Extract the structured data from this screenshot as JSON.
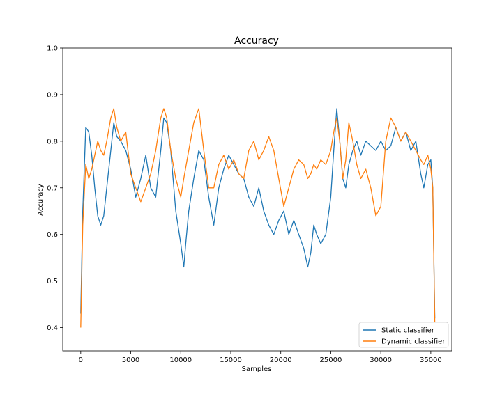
{
  "chart_data": {
    "type": "line",
    "title": "Accuracy",
    "xlabel": "Samples",
    "ylabel": "Accuracy",
    "xlim": [
      -1800,
      37100
    ],
    "ylim": [
      0.35,
      1.0
    ],
    "x_ticks": [
      0,
      5000,
      10000,
      15000,
      20000,
      25000,
      30000,
      35000
    ],
    "y_ticks": [
      0.4,
      0.5,
      0.6,
      0.7,
      0.8,
      0.9,
      1.0
    ],
    "x_tick_labels": [
      "0",
      "5000",
      "10000",
      "15000",
      "20000",
      "25000",
      "30000",
      "35000"
    ],
    "y_tick_labels": [
      "0.4",
      "0.5",
      "0.6",
      "0.7",
      "0.8",
      "0.9",
      "1.0"
    ],
    "grid": false,
    "legend_position": "lower-right",
    "series": [
      {
        "name": "Static classifier",
        "color": "#1f77b4",
        "x": [
          0,
          200,
          500,
          800,
          1100,
          1400,
          1700,
          2000,
          2300,
          2600,
          3000,
          3300,
          3600,
          4000,
          4500,
          5000,
          5500,
          6000,
          6500,
          7000,
          7500,
          8000,
          8300,
          8600,
          9000,
          9500,
          10000,
          10300,
          10500,
          10800,
          11300,
          11800,
          12300,
          12800,
          13300,
          13800,
          14300,
          14800,
          15300,
          15800,
          16300,
          16800,
          17300,
          17800,
          18300,
          18800,
          19300,
          19800,
          20300,
          20800,
          21300,
          21800,
          22300,
          22700,
          23000,
          23300,
          23600,
          24000,
          24500,
          25000,
          25300,
          25600,
          25900,
          26200,
          26500,
          26800,
          27200,
          27600,
          28000,
          28500,
          29000,
          29500,
          30000,
          30500,
          31000,
          31500,
          32000,
          32500,
          33000,
          33500,
          34000,
          34300,
          34700,
          35000,
          35200,
          35400
        ],
        "y": [
          0.43,
          0.65,
          0.83,
          0.82,
          0.77,
          0.7,
          0.64,
          0.62,
          0.64,
          0.7,
          0.78,
          0.84,
          0.81,
          0.8,
          0.78,
          0.74,
          0.68,
          0.72,
          0.77,
          0.7,
          0.68,
          0.78,
          0.85,
          0.84,
          0.78,
          0.65,
          0.58,
          0.53,
          0.58,
          0.65,
          0.72,
          0.78,
          0.76,
          0.68,
          0.62,
          0.7,
          0.74,
          0.77,
          0.75,
          0.73,
          0.72,
          0.68,
          0.66,
          0.7,
          0.65,
          0.62,
          0.6,
          0.63,
          0.65,
          0.6,
          0.63,
          0.6,
          0.57,
          0.53,
          0.56,
          0.62,
          0.6,
          0.58,
          0.6,
          0.68,
          0.78,
          0.87,
          0.8,
          0.72,
          0.7,
          0.75,
          0.78,
          0.8,
          0.77,
          0.8,
          0.79,
          0.78,
          0.8,
          0.78,
          0.79,
          0.83,
          0.8,
          0.82,
          0.78,
          0.8,
          0.73,
          0.7,
          0.75,
          0.76,
          0.7,
          0.42
        ]
      },
      {
        "name": "Dynamic classifier",
        "color": "#ff7f0e",
        "x": [
          0,
          200,
          500,
          800,
          1100,
          1400,
          1700,
          2000,
          2300,
          2600,
          3000,
          3300,
          3600,
          4000,
          4500,
          5000,
          5500,
          6000,
          6500,
          7000,
          7500,
          8000,
          8300,
          8600,
          9000,
          9500,
          10000,
          10300,
          10800,
          11300,
          11800,
          12300,
          12800,
          13300,
          13800,
          14300,
          14800,
          15300,
          15800,
          16300,
          16800,
          17300,
          17800,
          18300,
          18800,
          19300,
          19800,
          20300,
          20800,
          21300,
          21800,
          22300,
          22700,
          23000,
          23300,
          23600,
          24000,
          24500,
          25000,
          25300,
          25600,
          25900,
          26200,
          26500,
          26800,
          27200,
          27600,
          28000,
          28500,
          29000,
          29500,
          30000,
          30500,
          31000,
          31500,
          32000,
          32500,
          33000,
          33500,
          34000,
          34300,
          34700,
          35000,
          35200,
          35400
        ],
        "y": [
          0.4,
          0.62,
          0.75,
          0.72,
          0.74,
          0.77,
          0.8,
          0.78,
          0.77,
          0.8,
          0.85,
          0.87,
          0.83,
          0.8,
          0.82,
          0.73,
          0.7,
          0.67,
          0.7,
          0.73,
          0.78,
          0.85,
          0.87,
          0.85,
          0.78,
          0.72,
          0.68,
          0.72,
          0.78,
          0.84,
          0.87,
          0.78,
          0.7,
          0.7,
          0.75,
          0.77,
          0.74,
          0.76,
          0.73,
          0.72,
          0.78,
          0.8,
          0.76,
          0.78,
          0.81,
          0.78,
          0.72,
          0.66,
          0.7,
          0.74,
          0.76,
          0.75,
          0.72,
          0.73,
          0.75,
          0.74,
          0.76,
          0.75,
          0.78,
          0.82,
          0.85,
          0.8,
          0.72,
          0.76,
          0.84,
          0.8,
          0.75,
          0.72,
          0.74,
          0.7,
          0.64,
          0.66,
          0.8,
          0.85,
          0.83,
          0.8,
          0.82,
          0.8,
          0.78,
          0.76,
          0.75,
          0.77,
          0.74,
          0.7,
          0.41
        ]
      }
    ]
  }
}
